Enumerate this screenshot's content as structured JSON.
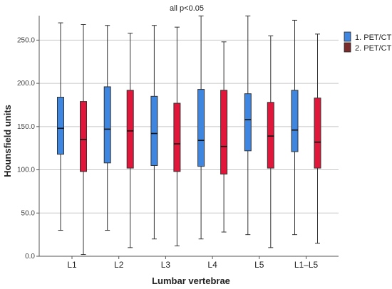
{
  "chart_data": {
    "type": "boxplot",
    "title": "all p<0.05",
    "xlabel": "Lumbar vertebrae",
    "ylabel": "Hounsfield units",
    "ylim": [
      0,
      275
    ],
    "yticks": [
      0,
      50,
      100,
      150,
      200,
      250
    ],
    "ytick_labels": [
      "0.0",
      "50.0",
      "100.0",
      "150.0",
      "200.0",
      "250.0"
    ],
    "grid": true,
    "legend_position": "top-right",
    "categories": [
      "L1",
      "L2",
      "L3",
      "L4",
      "L5",
      "L1–L5"
    ],
    "series": [
      {
        "name": "1. PET/CT",
        "color": "#3f86e0",
        "boxes": [
          {
            "min": 30,
            "q1": 118,
            "median": 148,
            "q3": 184,
            "max": 270
          },
          {
            "min": 30,
            "q1": 108,
            "median": 147,
            "q3": 196,
            "max": 267
          },
          {
            "min": 20,
            "q1": 105,
            "median": 142,
            "q3": 185,
            "max": 267
          },
          {
            "min": 20,
            "q1": 104,
            "median": 134,
            "q3": 193,
            "max": 278
          },
          {
            "min": 25,
            "q1": 122,
            "median": 158,
            "q3": 188,
            "max": 278
          },
          {
            "min": 25,
            "q1": 121,
            "median": 146,
            "q3": 192,
            "max": 273
          }
        ]
      },
      {
        "name": "2. PET/CT",
        "color": "#e0173a",
        "boxes": [
          {
            "min": 2,
            "q1": 98,
            "median": 135,
            "q3": 179,
            "max": 268
          },
          {
            "min": 10,
            "q1": 102,
            "median": 145,
            "q3": 192,
            "max": 258
          },
          {
            "min": 12,
            "q1": 98,
            "median": 130,
            "q3": 177,
            "max": 265
          },
          {
            "min": 28,
            "q1": 95,
            "median": 127,
            "q3": 192,
            "max": 248
          },
          {
            "min": 10,
            "q1": 102,
            "median": 139,
            "q3": 178,
            "max": 255
          },
          {
            "min": 15,
            "q1": 102,
            "median": 132,
            "q3": 183,
            "max": 257
          }
        ]
      }
    ]
  }
}
